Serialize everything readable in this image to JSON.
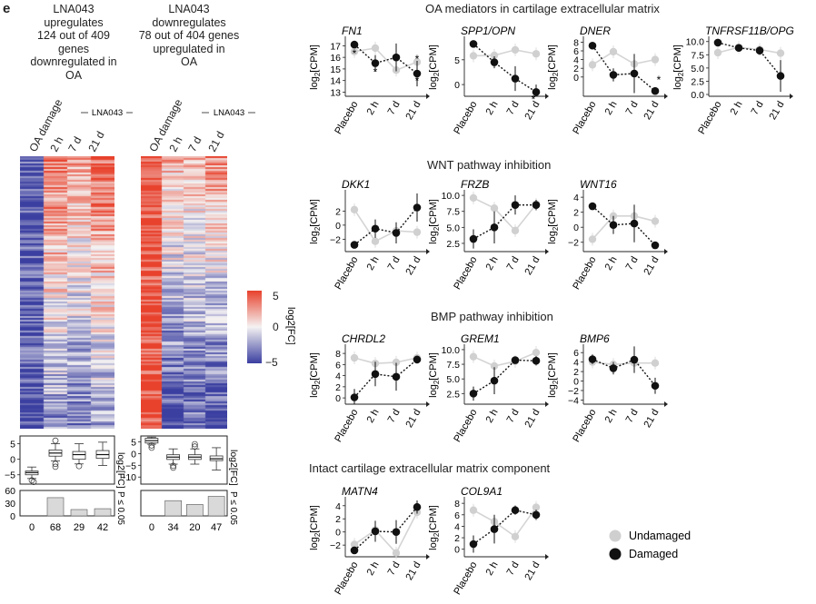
{
  "panel_label": "e",
  "heatmap_left": {
    "title_lines": [
      "LNA043",
      "upregulates",
      "124 out of 409 genes",
      "downregulated in",
      "OA"
    ],
    "bracket_label": "LNA043",
    "columns": [
      "OA damage",
      "2 h",
      "7 d",
      "21 d"
    ],
    "counts": [
      "0",
      "68",
      "29",
      "42"
    ]
  },
  "heatmap_right": {
    "title_lines": [
      "LNA043",
      "downregulates",
      "78 out of 404 genes",
      "upregulated in",
      "OA"
    ],
    "bracket_label": "LNA043",
    "columns": [
      "OA damage",
      "2 h",
      "7 d",
      "21 d"
    ],
    "counts": [
      "0",
      "34",
      "20",
      "47"
    ]
  },
  "colorbar": {
    "ticks": [
      "5",
      "0",
      "−5"
    ],
    "label": "log2[FC]",
    "colors": {
      "high": "#e8412c",
      "mid": "#f4f2f2",
      "low": "#3b3fa0"
    }
  },
  "box_axis": {
    "ticks_left": [
      "5",
      "0",
      "−5"
    ],
    "ticks_right": [
      "5",
      "0",
      "−5",
      "−10"
    ],
    "label": "log2[FC]"
  },
  "bar_axis": {
    "ticks": [
      "60",
      "30",
      "0"
    ],
    "label": "P ≤ 0.05"
  },
  "sections": {
    "ecm": "OA mediators in cartilage extracellular matrix",
    "wnt": "WNT pathway inhibition",
    "bmp": "BMP pathway inhibition",
    "intact": "Intact cartilage extracellular matrix component"
  },
  "x_labels": [
    "Placebo",
    "2 h",
    "7 d",
    "21 d"
  ],
  "y_axis_label": "log2[CPM]",
  "legend": {
    "undamaged": "Undamaged",
    "damaged": "Damaged"
  },
  "colors": {
    "damaged": "#111111",
    "undamaged": "#cfcfcf"
  },
  "chart_data": [
    {
      "type": "line",
      "gene": "FN1",
      "title": "FN1",
      "ylabel": "log2[CPM]",
      "x": [
        "Placebo",
        "2 h",
        "7 d",
        "21 d"
      ],
      "y_ticks": [
        13,
        14,
        15,
        16,
        17
      ],
      "ylim": [
        12.8,
        17.5
      ],
      "series": [
        {
          "name": "Damaged",
          "values": [
            17.1,
            15.5,
            16.0,
            14.6
          ],
          "err": [
            0.3,
            0.7,
            1.2,
            1.1
          ]
        },
        {
          "name": "Undamaged",
          "values": [
            16.5,
            16.8,
            14.9,
            15.6
          ]
        }
      ],
      "annotations": [
        "*",
        "*",
        "*",
        "*"
      ]
    },
    {
      "type": "line",
      "gene": "SPP1/OPN",
      "title": "SPP1/OPN",
      "ylabel": "log2[CPM]",
      "x": [
        "Placebo",
        "2 h",
        "7 d",
        "21 d"
      ],
      "y_ticks": [
        0,
        5
      ],
      "ylim": [
        -2,
        9
      ],
      "series": [
        {
          "name": "Damaged",
          "values": [
            8.2,
            4.5,
            1.2,
            -1.5
          ],
          "err": [
            0.3,
            1.2,
            2.5,
            1.5
          ]
        },
        {
          "name": "Undamaged",
          "values": [
            5.8,
            5.9,
            7.0,
            6.2
          ]
        }
      ],
      "annotations": [
        "*"
      ]
    },
    {
      "type": "line",
      "gene": "DNER",
      "title": "DNER",
      "ylabel": "log2[CPM]",
      "x": [
        "Placebo",
        "2 h",
        "7 d",
        "21 d"
      ],
      "y_ticks": [
        0,
        2,
        4,
        6,
        8
      ],
      "ylim": [
        -4,
        8.5
      ],
      "series": [
        {
          "name": "Damaged",
          "values": [
            7.2,
            0.5,
            0.8,
            -3.2
          ],
          "err": [
            0.3,
            1.5,
            4.5,
            0.5
          ]
        },
        {
          "name": "Undamaged",
          "values": [
            2.8,
            5.8,
            3.0,
            4.0
          ]
        }
      ],
      "annotations": [
        "*"
      ]
    },
    {
      "type": "line",
      "gene": "TNFRSF11B/OPG",
      "title": "TNFRSF11B/OPG",
      "ylabel": "log2[CPM]",
      "x": [
        "Placebo",
        "2 h",
        "7 d",
        "21 d"
      ],
      "y_ticks": [
        0,
        2.5,
        5.0,
        7.5,
        10.0
      ],
      "ylim": [
        0,
        10.3
      ],
      "series": [
        {
          "name": "Damaged",
          "values": [
            9.8,
            8.8,
            8.3,
            3.5
          ],
          "err": [
            0.2,
            0.6,
            0.8,
            3.0
          ]
        },
        {
          "name": "Undamaged",
          "values": [
            7.9,
            8.9,
            8.5,
            7.8
          ]
        }
      ]
    },
    {
      "type": "line",
      "gene": "DKK1",
      "title": "DKK1",
      "ylabel": "log2[CPM]",
      "x": [
        "Placebo",
        "2 h",
        "7 d",
        "21 d"
      ],
      "y_ticks": [
        -2,
        0,
        2
      ],
      "ylim": [
        -3.5,
        4.5
      ],
      "series": [
        {
          "name": "Damaged",
          "values": [
            -2.8,
            -0.5,
            -1.1,
            2.5
          ],
          "err": [
            0.3,
            1.3,
            1.5,
            2.0
          ]
        },
        {
          "name": "Undamaged",
          "values": [
            2.2,
            -2.3,
            -0.8,
            -1.0
          ]
        }
      ]
    },
    {
      "type": "line",
      "gene": "FRZB",
      "title": "FRZB",
      "ylabel": "log2[CPM]",
      "x": [
        "Placebo",
        "2 h",
        "7 d",
        "21 d"
      ],
      "y_ticks": [
        2.5,
        5.0,
        7.5,
        10.0
      ],
      "ylim": [
        1.5,
        10.3
      ],
      "series": [
        {
          "name": "Damaged",
          "values": [
            3.2,
            5.0,
            8.5,
            8.5
          ],
          "err": [
            1.5,
            2.5,
            1.5,
            0.8
          ]
        },
        {
          "name": "Undamaged",
          "values": [
            9.6,
            8.0,
            4.5,
            8.6
          ]
        }
      ]
    },
    {
      "type": "line",
      "gene": "WNT16",
      "title": "WNT16",
      "ylabel": "log2[CPM]",
      "x": [
        "Placebo",
        "2 h",
        "7 d",
        "21 d"
      ],
      "y_ticks": [
        -2,
        0,
        2,
        4
      ],
      "ylim": [
        -3,
        4.5
      ],
      "series": [
        {
          "name": "Damaged",
          "values": [
            2.8,
            0.3,
            0.5,
            -2.4
          ],
          "err": [
            0.4,
            1.2,
            2.5,
            0.3
          ]
        },
        {
          "name": "Undamaged",
          "values": [
            -1.6,
            1.5,
            1.5,
            0.8
          ]
        }
      ]
    },
    {
      "type": "line",
      "gene": "CHRDL2",
      "title": "CHRDL2",
      "ylabel": "log2[CPM]",
      "x": [
        "Placebo",
        "2 h",
        "7 d",
        "21 d"
      ],
      "y_ticks": [
        0,
        2,
        4,
        6,
        8
      ],
      "ylim": [
        -0.8,
        9
      ],
      "series": [
        {
          "name": "Damaged",
          "values": [
            0.1,
            4.3,
            3.8,
            6.9
          ],
          "err": [
            1.5,
            2.2,
            2.5,
            0.7
          ]
        },
        {
          "name": "Undamaged",
          "values": [
            7.2,
            6.2,
            6.4,
            7.2
          ]
        }
      ]
    },
    {
      "type": "line",
      "gene": "GREM1",
      "title": "GREM1",
      "ylabel": "log2[CPM]",
      "x": [
        "Placebo",
        "2 h",
        "7 d",
        "21 d"
      ],
      "y_ticks": [
        2.5,
        5.0,
        7.5,
        10.0
      ],
      "ylim": [
        1,
        10.3
      ],
      "series": [
        {
          "name": "Damaged",
          "values": [
            2.5,
            4.7,
            8.2,
            8.1
          ],
          "err": [
            1.2,
            2.3,
            0.4,
            0.8
          ]
        },
        {
          "name": "Undamaged",
          "values": [
            8.8,
            7.2,
            8.0,
            9.5
          ]
        }
      ]
    },
    {
      "type": "line",
      "gene": "BMP6",
      "title": "BMP6",
      "ylabel": "log2[CPM]",
      "x": [
        "Placebo",
        "2 h",
        "7 d",
        "21 d"
      ],
      "y_ticks": [
        -4,
        -2,
        0,
        2,
        4,
        6
      ],
      "ylim": [
        -4.5,
        7
      ],
      "series": [
        {
          "name": "Damaged",
          "values": [
            4.6,
            2.7,
            4.5,
            -1.0
          ],
          "err": [
            1.0,
            1.3,
            2.8,
            1.7
          ]
        },
        {
          "name": "Undamaged",
          "values": [
            4.0,
            3.5,
            3.8,
            3.8
          ]
        }
      ]
    },
    {
      "type": "line",
      "gene": "MATN4",
      "title": "MATN4",
      "ylabel": "log2[CPM]",
      "x": [
        "Placebo",
        "2 h",
        "7 d",
        "21 d"
      ],
      "y_ticks": [
        -2,
        0,
        2,
        4
      ],
      "ylim": [
        -3.5,
        4.8
      ],
      "series": [
        {
          "name": "Damaged",
          "values": [
            -2.8,
            0.1,
            0.0,
            3.8
          ],
          "err": [
            0.4,
            1.6,
            1.8,
            1.0
          ]
        },
        {
          "name": "Undamaged",
          "values": [
            -1.9,
            0.3,
            -3.2,
            3.0
          ]
        }
      ]
    },
    {
      "type": "line",
      "gene": "COL9A1",
      "title": "COL9A1",
      "ylabel": "log2[CPM]",
      "x": [
        "Placebo",
        "2 h",
        "7 d",
        "21 d"
      ],
      "y_ticks": [
        0,
        2,
        4,
        6,
        8
      ],
      "ylim": [
        -1,
        8.5
      ],
      "series": [
        {
          "name": "Damaged",
          "values": [
            0.9,
            3.5,
            6.8,
            6.0
          ],
          "err": [
            1.5,
            2.5,
            0.8,
            0.9
          ]
        },
        {
          "name": "Undamaged",
          "values": [
            6.8,
            4.8,
            2.2,
            7.3
          ]
        }
      ]
    }
  ]
}
